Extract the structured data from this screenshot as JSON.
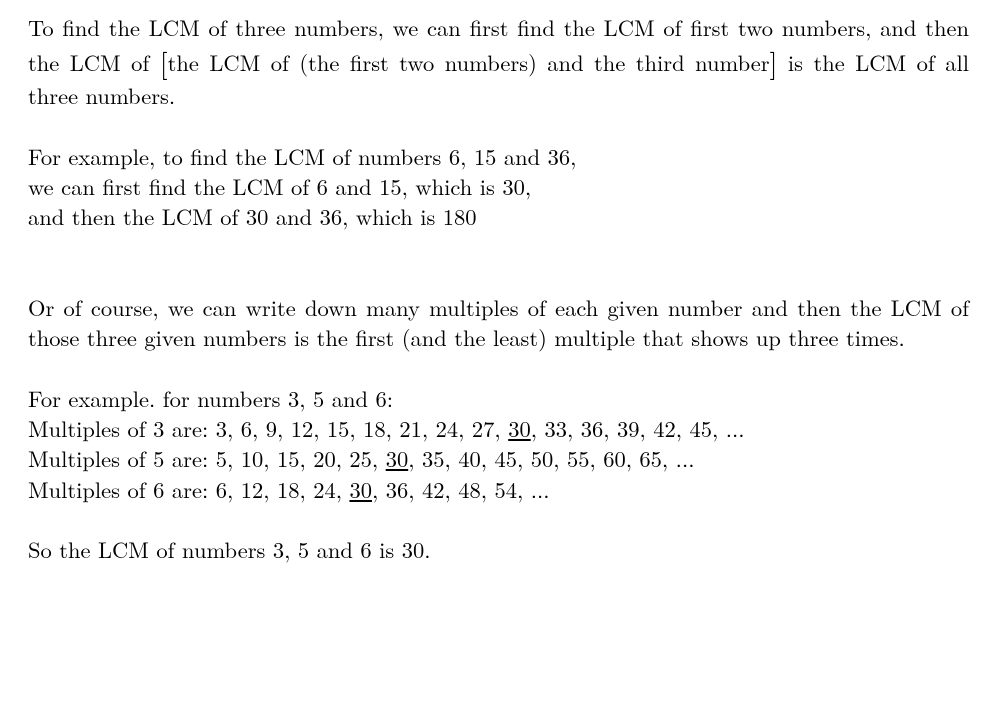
{
  "p1_a": "To find the LCM of three numbers, we can first find the LCM of first two numbers, and then the LCM of ",
  "p1_b": "the LCM of (the first two numbers) and the third number",
  "p1_c": " is the LCM of all three numbers.",
  "p2_l1": "For example, to find the LCM of numbers 6, 15 and 36,",
  "p2_l2": "we can first find the LCM of 6 and 15, which is 30,",
  "p2_l3": "and then the LCM of 30 and 36, which is 180",
  "p3": "Or of course, we can write down many multiples of each given number and then the LCM of those three given numbers is the first (and the least) multiple that shows up three times.",
  "p4_l1": "For example. for numbers 3, 5 and 6:",
  "p4_l2a": "Multiples of 3 are: 3, 6, 9, 12, 15, 18, 21, 24, 27, ",
  "p4_l2u": "30",
  "p4_l2b": ", 33, 36, 39, 42, 45, ...",
  "p4_l3a": "Multiples of 5 are: 5, 10, 15, 20, 25, ",
  "p4_l3u": "30",
  "p4_l3b": ", 35, 40, 45, 50, 55, 60, 65, ...",
  "p4_l4a": "Multiples of 6 are: 6, 12, 18, 24, ",
  "p4_l4u": "30",
  "p4_l4b": ", 36, 42, 48, 54, ...",
  "p5": "So the LCM of numbers 3, 5 and 6 is 30."
}
